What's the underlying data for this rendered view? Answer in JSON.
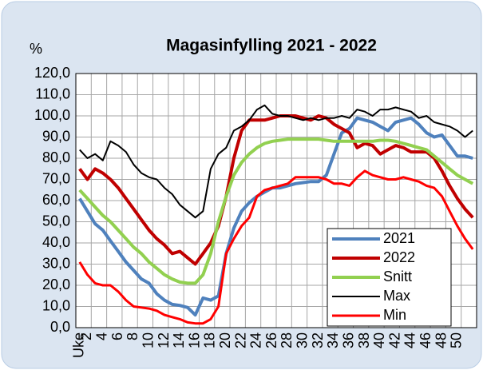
{
  "chart_data": {
    "type": "line",
    "title": "Magasinfylling 2021 - 2022",
    "ylabel": "%",
    "categories": [
      "Uke",
      "2",
      null,
      "4",
      null,
      "6",
      null,
      "8",
      null,
      "10",
      null,
      "12",
      null,
      "14",
      null,
      "16",
      null,
      "18",
      null,
      "20",
      null,
      "22",
      null,
      "24",
      null,
      "26",
      null,
      "28",
      null,
      "30",
      null,
      "32",
      null,
      "34",
      null,
      "36",
      null,
      "38",
      null,
      "40",
      null,
      "42",
      null,
      "44",
      null,
      "46",
      null,
      "48",
      null,
      "50",
      null,
      null
    ],
    "series": [
      {
        "name": "2021",
        "color": "#4f81bd",
        "width": 4,
        "values": [
          61,
          55,
          49,
          46,
          41,
          36,
          31,
          27,
          23,
          21,
          16,
          13,
          11,
          10.5,
          9.5,
          6,
          14,
          13,
          15,
          35,
          47,
          55,
          59,
          62,
          64,
          66,
          66,
          67,
          68,
          68.5,
          69,
          69,
          72,
          82,
          92,
          94,
          99,
          98,
          97,
          95,
          93,
          97,
          98,
          99,
          96,
          92,
          90,
          91,
          86,
          81,
          81,
          80
        ]
      },
      {
        "name": "2022",
        "color": "#c00000",
        "width": 4,
        "values": [
          75,
          70,
          75,
          73,
          70,
          66,
          61,
          56,
          51,
          46,
          42,
          39,
          35,
          36,
          33,
          30,
          35,
          40,
          48,
          62,
          80,
          93,
          98,
          98,
          98,
          99,
          100,
          100,
          100,
          99,
          98,
          100,
          99,
          96,
          94,
          92,
          85,
          87,
          86,
          82,
          84,
          86,
          85,
          83,
          83,
          83,
          80,
          74,
          67,
          61,
          56,
          52
        ]
      },
      {
        "name": "Snitt",
        "color": "#92d050",
        "width": 4,
        "values": [
          65,
          61,
          57,
          53,
          50,
          46,
          42,
          38,
          35,
          31,
          28,
          25,
          23,
          21.5,
          21,
          21,
          25,
          35,
          50,
          62,
          72,
          78,
          82,
          85,
          87,
          88,
          88.5,
          89,
          89,
          89,
          89,
          89,
          88.5,
          88,
          88,
          88,
          88,
          88,
          88,
          88.5,
          88.5,
          88,
          87,
          86,
          85,
          84,
          81,
          78,
          75,
          72,
          70,
          68
        ]
      },
      {
        "name": "Max",
        "color": "#000000",
        "width": 2,
        "values": [
          84,
          80,
          82,
          79,
          88,
          86,
          83,
          77,
          73,
          71,
          70,
          66,
          63,
          58,
          55,
          52,
          55,
          75,
          82,
          85,
          93,
          95,
          98,
          103,
          105,
          101,
          100,
          100,
          99,
          98,
          99,
          98,
          99,
          99,
          100,
          99,
          103,
          102,
          100,
          103,
          103,
          104,
          103,
          102,
          99,
          100,
          97,
          96,
          95,
          93,
          90,
          93
        ]
      },
      {
        "name": "Min",
        "color": "#ff0000",
        "width": 3,
        "values": [
          31,
          25,
          21,
          20,
          20,
          17,
          13,
          10,
          9.5,
          9,
          8,
          6,
          5,
          4,
          2.5,
          2,
          2,
          4,
          10,
          35,
          42,
          48,
          52,
          62,
          65,
          66,
          67,
          68,
          71,
          71,
          71,
          71,
          70,
          68,
          68,
          67,
          71,
          74,
          72,
          71,
          70,
          70,
          71,
          70,
          69,
          67,
          66,
          62,
          55,
          48,
          42,
          37
        ]
      }
    ],
    "ylim": [
      0,
      120
    ],
    "yticks": [
      {
        "value": 0,
        "label": "0,0"
      },
      {
        "value": 10,
        "label": "10,0"
      },
      {
        "value": 20,
        "label": "20,0"
      },
      {
        "value": 30,
        "label": "30,0"
      },
      {
        "value": 40,
        "label": "40,0"
      },
      {
        "value": 50,
        "label": "50,0"
      },
      {
        "value": 60,
        "label": "60,0"
      },
      {
        "value": 70,
        "label": "70,0"
      },
      {
        "value": 80,
        "label": "80,0"
      },
      {
        "value": 90,
        "label": "90,0"
      },
      {
        "value": 100,
        "label": "100,0"
      },
      {
        "value": 110,
        "label": "110,0"
      },
      {
        "value": 120,
        "label": "120,0"
      }
    ],
    "grid": true,
    "legend": "lower right"
  }
}
